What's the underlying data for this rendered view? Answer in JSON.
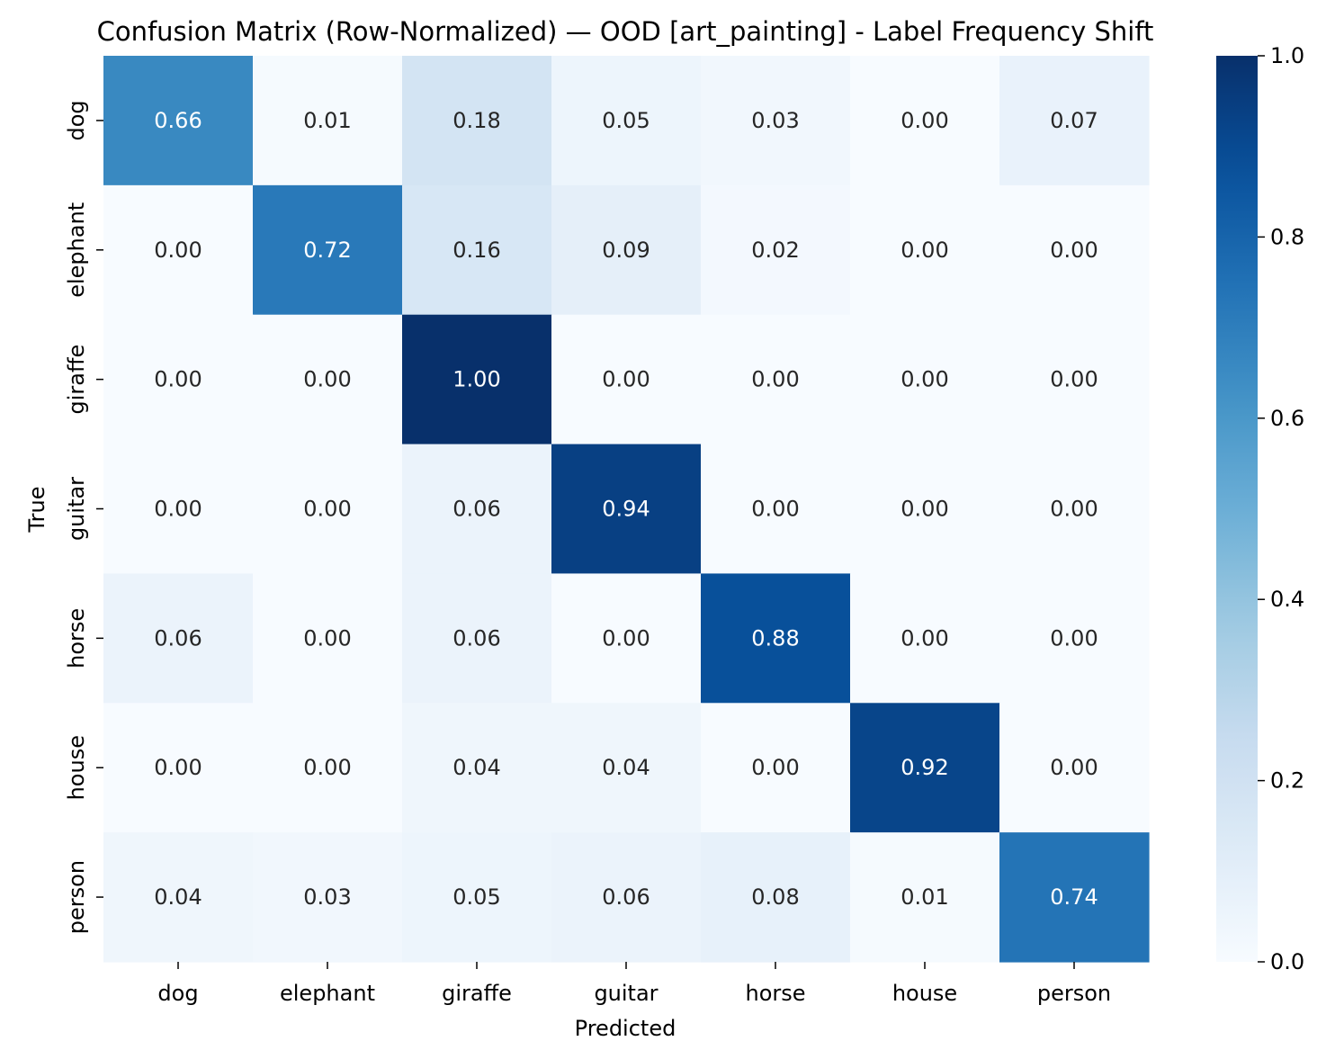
{
  "chart_data": {
    "type": "heatmap",
    "title": "Confusion Matrix (Row-Normalized) — OOD [art_painting] - Label Frequency Shift",
    "xlabel": "Predicted",
    "ylabel": "True",
    "x_categories": [
      "dog",
      "elephant",
      "giraffe",
      "guitar",
      "horse",
      "house",
      "person"
    ],
    "y_categories": [
      "dog",
      "elephant",
      "giraffe",
      "guitar",
      "horse",
      "house",
      "person"
    ],
    "values": [
      [
        0.66,
        0.01,
        0.18,
        0.05,
        0.03,
        0.0,
        0.07
      ],
      [
        0.0,
        0.72,
        0.16,
        0.09,
        0.02,
        0.0,
        0.0
      ],
      [
        0.0,
        0.0,
        1.0,
        0.0,
        0.0,
        0.0,
        0.0
      ],
      [
        0.0,
        0.0,
        0.06,
        0.94,
        0.0,
        0.0,
        0.0
      ],
      [
        0.06,
        0.0,
        0.06,
        0.0,
        0.88,
        0.0,
        0.0
      ],
      [
        0.0,
        0.0,
        0.04,
        0.04,
        0.0,
        0.92,
        0.0
      ],
      [
        0.04,
        0.03,
        0.05,
        0.06,
        0.08,
        0.01,
        0.74
      ]
    ],
    "value_format": "0.00",
    "colormap": "Blues",
    "colorbar": {
      "range": [
        0.0,
        1.0
      ],
      "ticks": [
        0.0,
        0.2,
        0.4,
        0.6,
        0.8,
        1.0
      ],
      "tick_labels": [
        "0.0",
        "0.2",
        "0.4",
        "0.6",
        "0.8",
        "1.0"
      ]
    },
    "colors": {
      "low": "#f7fbff",
      "high": "#08306b",
      "text_dark": "#262626",
      "text_light": "#ffffff"
    }
  }
}
